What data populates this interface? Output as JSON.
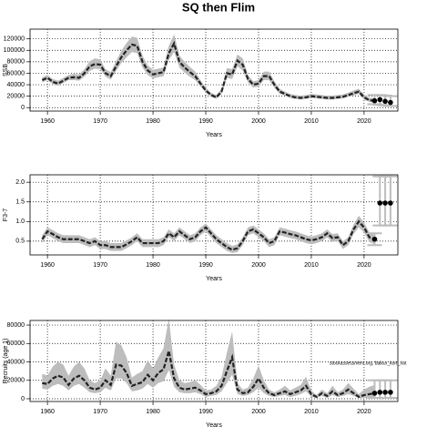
{
  "title": "SQ then Flim",
  "note": "stockassessment.org, baikur_korr_hbt",
  "chart_data": [
    {
      "type": "line",
      "ylabel": "SSB",
      "xlabel": "Years",
      "x": [
        1959,
        1960,
        1961,
        1962,
        1963,
        1964,
        1965,
        1966,
        1967,
        1968,
        1969,
        1970,
        1971,
        1972,
        1973,
        1974,
        1975,
        1976,
        1977,
        1978,
        1979,
        1980,
        1981,
        1982,
        1983,
        1984,
        1985,
        1986,
        1987,
        1988,
        1989,
        1990,
        1991,
        1992,
        1993,
        1994,
        1995,
        1996,
        1997,
        1998,
        1999,
        2000,
        2001,
        2002,
        2003,
        2004,
        2005,
        2006,
        2007,
        2008,
        2009,
        2010,
        2011,
        2012,
        2013,
        2014,
        2015,
        2016,
        2017,
        2018,
        2019,
        2020,
        2021,
        2022
      ],
      "values": [
        48000,
        52000,
        45000,
        42000,
        47000,
        52000,
        53000,
        52000,
        60000,
        72000,
        76000,
        75000,
        60000,
        55000,
        72000,
        88000,
        100000,
        110000,
        108000,
        80000,
        65000,
        58000,
        60000,
        62000,
        95000,
        112000,
        80000,
        70000,
        62000,
        55000,
        42000,
        30000,
        22000,
        18000,
        28000,
        60000,
        58000,
        82000,
        75000,
        50000,
        40000,
        42000,
        55000,
        55000,
        40000,
        28000,
        24000,
        20000,
        18000,
        17000,
        18000,
        20000,
        19000,
        18000,
        17000,
        17000,
        18000,
        19000,
        22000,
        25000,
        28000,
        18000,
        13000,
        12000
      ],
      "lower": [
        44000,
        48000,
        41000,
        38000,
        43000,
        48000,
        48000,
        47000,
        54000,
        64000,
        68000,
        67000,
        54000,
        49000,
        64000,
        78000,
        88000,
        97000,
        95000,
        70000,
        57000,
        51000,
        53000,
        55000,
        83000,
        97000,
        70000,
        61000,
        54000,
        48000,
        37000,
        26000,
        19000,
        15000,
        24000,
        52000,
        50000,
        72000,
        65000,
        44000,
        35000,
        37000,
        48000,
        48000,
        35000,
        24000,
        21000,
        17000,
        15000,
        14000,
        15000,
        17000,
        16000,
        15000,
        14000,
        14000,
        15000,
        16000,
        19000,
        21000,
        24000,
        14000,
        10000,
        8000
      ],
      "upper": [
        53000,
        57000,
        50000,
        47000,
        52000,
        57000,
        59000,
        58000,
        67000,
        81000,
        86000,
        84000,
        67000,
        62000,
        81000,
        99000,
        113000,
        124000,
        122000,
        91000,
        74000,
        66000,
        68000,
        70000,
        108000,
        128000,
        91000,
        80000,
        71000,
        63000,
        48000,
        35000,
        26000,
        22000,
        33000,
        69000,
        67000,
        93000,
        86000,
        57000,
        46000,
        48000,
        63000,
        63000,
        46000,
        33000,
        28000,
        24000,
        22000,
        21000,
        22000,
        24000,
        23000,
        22000,
        21000,
        21000,
        22000,
        23000,
        26000,
        30000,
        33000,
        23000,
        17000,
        17000
      ],
      "projection": {
        "x": [
          2022,
          2023,
          2024,
          2025
        ],
        "values": [
          12000,
          14000,
          11000,
          9000
        ],
        "lower": [
          6000,
          5000,
          4000,
          3000
        ],
        "upper": [
          22000,
          22000,
          21000,
          20000
        ]
      },
      "xlim": [
        1956.7,
        2026.4
      ],
      "xticks": [
        1960,
        1970,
        1980,
        1990,
        2000,
        2010,
        2020
      ],
      "ylim": [
        -6000,
        137000
      ],
      "yticks": [
        0,
        20000,
        40000,
        60000,
        80000,
        100000,
        120000
      ],
      "grid": true,
      "color": "#222222",
      "band_color": "#bdbdbd"
    },
    {
      "type": "line",
      "ylabel": "F3-7",
      "xlabel": "Years",
      "x": [
        1959,
        1960,
        1961,
        1962,
        1963,
        1964,
        1965,
        1966,
        1967,
        1968,
        1969,
        1970,
        1971,
        1972,
        1973,
        1974,
        1975,
        1976,
        1977,
        1978,
        1979,
        1980,
        1981,
        1982,
        1983,
        1984,
        1985,
        1986,
        1987,
        1988,
        1989,
        1990,
        1991,
        1992,
        1993,
        1994,
        1995,
        1996,
        1997,
        1998,
        1999,
        2000,
        2001,
        2002,
        2003,
        2004,
        2005,
        2006,
        2007,
        2008,
        2009,
        2010,
        2011,
        2012,
        2013,
        2014,
        2015,
        2016,
        2017,
        2018,
        2019,
        2020,
        2021,
        2022
      ],
      "values": [
        0.55,
        0.75,
        0.68,
        0.6,
        0.55,
        0.55,
        0.55,
        0.55,
        0.5,
        0.45,
        0.5,
        0.4,
        0.4,
        0.35,
        0.35,
        0.35,
        0.42,
        0.5,
        0.6,
        0.45,
        0.45,
        0.45,
        0.45,
        0.5,
        0.7,
        0.6,
        0.75,
        0.65,
        0.55,
        0.6,
        0.75,
        0.85,
        0.7,
        0.55,
        0.45,
        0.35,
        0.28,
        0.32,
        0.5,
        0.75,
        0.8,
        0.7,
        0.6,
        0.45,
        0.5,
        0.75,
        0.72,
        0.68,
        0.65,
        0.6,
        0.55,
        0.52,
        0.55,
        0.6,
        0.7,
        0.58,
        0.6,
        0.4,
        0.5,
        0.8,
        1.0,
        0.85,
        0.6,
        0.55
      ],
      "lower": [
        0.45,
        0.65,
        0.58,
        0.5,
        0.45,
        0.45,
        0.45,
        0.45,
        0.4,
        0.35,
        0.4,
        0.3,
        0.3,
        0.25,
        0.25,
        0.25,
        0.32,
        0.4,
        0.5,
        0.35,
        0.35,
        0.35,
        0.35,
        0.4,
        0.6,
        0.5,
        0.65,
        0.55,
        0.45,
        0.5,
        0.65,
        0.75,
        0.6,
        0.45,
        0.35,
        0.25,
        0.2,
        0.22,
        0.4,
        0.65,
        0.7,
        0.6,
        0.5,
        0.35,
        0.4,
        0.65,
        0.62,
        0.58,
        0.55,
        0.5,
        0.45,
        0.42,
        0.45,
        0.5,
        0.6,
        0.48,
        0.5,
        0.3,
        0.4,
        0.68,
        0.85,
        0.72,
        0.48,
        0.42
      ],
      "upper": [
        0.65,
        0.85,
        0.78,
        0.7,
        0.65,
        0.65,
        0.65,
        0.65,
        0.6,
        0.55,
        0.6,
        0.5,
        0.5,
        0.45,
        0.45,
        0.45,
        0.52,
        0.6,
        0.7,
        0.55,
        0.55,
        0.55,
        0.55,
        0.6,
        0.8,
        0.7,
        0.85,
        0.75,
        0.65,
        0.7,
        0.85,
        0.95,
        0.8,
        0.65,
        0.55,
        0.45,
        0.38,
        0.42,
        0.6,
        0.85,
        0.9,
        0.8,
        0.7,
        0.55,
        0.6,
        0.85,
        0.82,
        0.78,
        0.75,
        0.7,
        0.65,
        0.62,
        0.65,
        0.7,
        0.8,
        0.68,
        0.7,
        0.5,
        0.6,
        0.92,
        1.15,
        0.98,
        0.72,
        0.68
      ],
      "projection": {
        "x": [
          2022,
          2023,
          2024,
          2025
        ],
        "values": [
          0.55,
          1.47,
          1.47,
          1.47
        ],
        "lower": [
          0.4,
          0.9,
          0.9,
          0.9
        ],
        "upper": [
          0.7,
          2.15,
          2.15,
          2.15
        ]
      },
      "xlim": [
        1956.7,
        2026.4
      ],
      "xticks": [
        1960,
        1970,
        1980,
        1990,
        2000,
        2010,
        2020
      ],
      "ylim": [
        0.15,
        2.19
      ],
      "yticks": [
        0.5,
        {
          "value": 1,
          "label": "1.0"
        },
        1.5,
        {
          "value": 2,
          "label": "2.0"
        }
      ],
      "grid": true,
      "color": "#222222",
      "band_color": "#bdbdbd"
    },
    {
      "type": "line",
      "ylabel": "Recruits (age 1)",
      "xlabel": "Years",
      "x": [
        1959,
        1960,
        1961,
        1962,
        1963,
        1964,
        1965,
        1966,
        1967,
        1968,
        1969,
        1970,
        1971,
        1972,
        1973,
        1974,
        1975,
        1976,
        1977,
        1978,
        1979,
        1980,
        1981,
        1982,
        1983,
        1984,
        1985,
        1986,
        1987,
        1988,
        1989,
        1990,
        1991,
        1992,
        1993,
        1994,
        1995,
        1996,
        1997,
        1998,
        1999,
        2000,
        2001,
        2002,
        2003,
        2004,
        2005,
        2006,
        2007,
        2008,
        2009,
        2010,
        2011,
        2012,
        2013,
        2014,
        2015,
        2016,
        2017,
        2018,
        2019,
        2020,
        2021,
        2022
      ],
      "values": [
        17000,
        16000,
        22000,
        25000,
        23000,
        15000,
        22000,
        25000,
        20000,
        12000,
        10000,
        12000,
        20000,
        15000,
        37000,
        36000,
        28000,
        14000,
        16000,
        18000,
        26000,
        20000,
        28000,
        32000,
        52000,
        22000,
        12000,
        10000,
        11000,
        12000,
        9000,
        5000,
        6000,
        8000,
        14000,
        30000,
        45000,
        10000,
        6000,
        7000,
        13000,
        22000,
        12000,
        6000,
        4000,
        6000,
        8000,
        5000,
        7000,
        9000,
        14000,
        5000,
        2000,
        6000,
        3000,
        8000,
        4000,
        6000,
        10000,
        6000,
        2000,
        4000,
        5000,
        6000
      ],
      "lower": [
        11000,
        10000,
        14000,
        16000,
        14000,
        9000,
        14000,
        16000,
        12000,
        7000,
        6000,
        7000,
        12000,
        9000,
        22000,
        22000,
        17000,
        8000,
        9000,
        11000,
        16000,
        12000,
        17000,
        19000,
        31000,
        13000,
        7000,
        6000,
        6000,
        7000,
        5000,
        2000,
        3000,
        4000,
        8000,
        17000,
        26000,
        5000,
        3000,
        4000,
        7000,
        12000,
        6000,
        3000,
        2000,
        3000,
        4000,
        2000,
        3000,
        5000,
        8000,
        2000,
        1000,
        3000,
        1000,
        4000,
        2000,
        3000,
        5000,
        3000,
        1000,
        1000,
        1000,
        1000
      ],
      "upper": [
        27000,
        25000,
        35000,
        40000,
        37000,
        25000,
        35000,
        40000,
        33000,
        20000,
        17000,
        20000,
        33000,
        25000,
        62000,
        58000,
        45000,
        23000,
        27000,
        30000,
        42000,
        33000,
        45000,
        55000,
        87000,
        37000,
        20000,
        17000,
        18000,
        20000,
        15000,
        9000,
        10000,
        14000,
        24000,
        50000,
        73000,
        17000,
        10000,
        12000,
        22000,
        36000,
        20000,
        10000,
        7000,
        10000,
        14000,
        9000,
        12000,
        15000,
        24000,
        9000,
        4000,
        10000,
        6000,
        14000,
        7000,
        10000,
        17000,
        11000,
        5000,
        10000,
        13000,
        15000
      ],
      "projection": {
        "x": [
          2022,
          2023,
          2024,
          2025
        ],
        "values": [
          6000,
          7000,
          7000,
          7000
        ],
        "lower": [
          1000,
          1000,
          1000,
          1000
        ],
        "upper": [
          20000,
          20000,
          20000,
          20000
        ]
      },
      "xlim": [
        1956.7,
        2026.4
      ],
      "xticks": [
        1960,
        1970,
        1980,
        1990,
        2000,
        2010,
        2020
      ],
      "ylim": [
        -3000,
        85000
      ],
      "yticks": [
        0,
        20000,
        40000,
        60000,
        80000
      ],
      "grid": true,
      "color": "#222222",
      "band_color": "#bdbdbd"
    }
  ]
}
